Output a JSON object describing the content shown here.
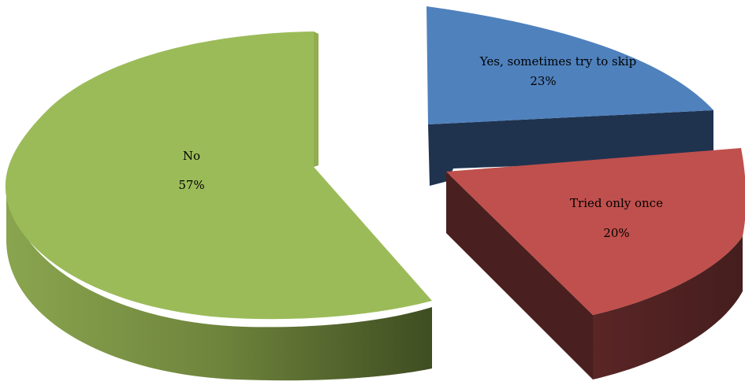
{
  "chart_data": {
    "type": "pie",
    "style": "3d-exploded",
    "title": "",
    "slices": [
      {
        "label": "Yes, sometimes try to skip",
        "value": 23,
        "value_label": "23%",
        "color": "#4F81BD"
      },
      {
        "label": "Tried only once",
        "value": 20,
        "value_label": "20%",
        "color": "#C0504D"
      },
      {
        "label": "No",
        "value": 57,
        "value_label": "57%",
        "color": "#9BBB59"
      }
    ]
  }
}
